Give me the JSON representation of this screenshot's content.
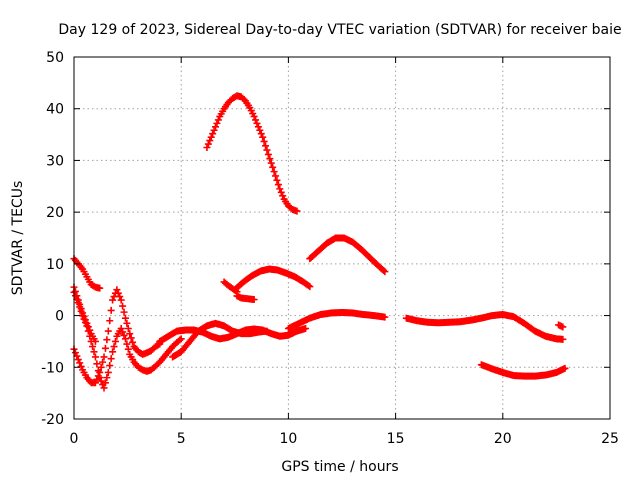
{
  "chart_data": {
    "type": "scatter",
    "title": "Day 129 of 2023, Sidereal Day-to-day VTEC variation (SDTVAR) for receiver baie",
    "xlabel": "GPS time / hours",
    "ylabel": "SDTVAR / TECUs",
    "xlim": [
      0,
      25
    ],
    "ylim": [
      -20,
      50
    ],
    "x_ticks": [
      0,
      5,
      10,
      15,
      20,
      25
    ],
    "y_ticks": [
      -20,
      -10,
      0,
      10,
      20,
      30,
      40,
      50
    ],
    "x_tick_labels": [
      "0",
      "5",
      "10",
      "15",
      "20",
      "25"
    ],
    "y_tick_labels": [
      "-20",
      "-10",
      "0",
      "10",
      "20",
      "30",
      "40",
      "50"
    ],
    "grid": true,
    "legend": "none",
    "marker": "+",
    "colors": {
      "series": "#ff0000",
      "grid": "#a0a0a0",
      "axis": "#000000"
    },
    "series": [
      {
        "name": "segment-1",
        "x": [
          0.0,
          0.2,
          0.4,
          0.6,
          0.8,
          1.0,
          1.2,
          1.4,
          1.6,
          1.8,
          2.0,
          2.2,
          2.4,
          2.6,
          2.8,
          3.0,
          3.2,
          3.4,
          3.6,
          3.8,
          4.0,
          4.2,
          4.4,
          4.6,
          4.8,
          5.0
        ],
        "values": [
          4.5,
          2.5,
          0.0,
          -2.0,
          -5.0,
          -8.0,
          -12.0,
          -14.0,
          -11.0,
          -7.0,
          -4.0,
          -2.5,
          -4.5,
          -7.5,
          -9.0,
          -10.0,
          -10.5,
          -10.8,
          -10.5,
          -9.8,
          -9.0,
          -8.0,
          -7.0,
          -6.0,
          -5.2,
          -4.5
        ]
      },
      {
        "name": "segment-2",
        "x": [
          0.0,
          0.2,
          0.4,
          0.6,
          0.8,
          1.0,
          1.2,
          1.4,
          1.6,
          1.8,
          2.0,
          2.2,
          2.4,
          2.6,
          2.8,
          3.0,
          3.2,
          3.4,
          3.6,
          3.8,
          4.0
        ],
        "values": [
          -6.5,
          -8.5,
          -10.5,
          -12.0,
          -13.0,
          -13.0,
          -11.0,
          -8.0,
          -3.0,
          3.0,
          5.0,
          3.0,
          -0.5,
          -3.5,
          -6.0,
          -7.0,
          -7.5,
          -7.2,
          -6.8,
          -6.0,
          -5.5
        ]
      },
      {
        "name": "segment-3",
        "x": [
          0.0,
          0.2,
          0.4,
          0.6,
          0.8,
          1.0,
          1.2
        ],
        "values": [
          11.0,
          10.0,
          9.0,
          7.5,
          6.0,
          5.5,
          5.3
        ]
      },
      {
        "name": "segment-4",
        "x": [
          0.0,
          0.2,
          0.4,
          0.6,
          0.8,
          1.0
        ],
        "values": [
          5.5,
          3.0,
          0.5,
          -1.5,
          -3.5,
          -5.0
        ]
      },
      {
        "name": "segment-5",
        "x": [
          4.0,
          4.4,
          4.8,
          5.2,
          5.6,
          6.0,
          6.4,
          6.8,
          7.2,
          7.6,
          8.0,
          8.4,
          8.8,
          9.2,
          9.6,
          10.0,
          10.4,
          10.8
        ],
        "values": [
          -5.0,
          -4.0,
          -3.0,
          -2.8,
          -2.8,
          -3.2,
          -4.0,
          -4.5,
          -4.2,
          -3.5,
          -2.8,
          -2.6,
          -2.8,
          -3.5,
          -4.0,
          -3.8,
          -3.0,
          -2.5
        ]
      },
      {
        "name": "segment-6",
        "x": [
          4.6,
          5.0,
          5.4,
          5.8,
          6.2,
          6.6,
          7.0,
          7.4,
          7.8,
          8.2,
          8.6,
          9.0
        ],
        "values": [
          -8.0,
          -7.0,
          -5.0,
          -3.0,
          -2.0,
          -1.5,
          -2.0,
          -3.0,
          -3.5,
          -3.5,
          -3.2,
          -3.0
        ]
      },
      {
        "name": "segment-7",
        "x": [
          10.0,
          10.5,
          11.0,
          11.5,
          12.0,
          12.5,
          13.0,
          13.5,
          14.0,
          14.5
        ],
        "values": [
          -2.5,
          -1.5,
          -0.5,
          0.2,
          0.5,
          0.6,
          0.5,
          0.2,
          0.0,
          -0.3
        ]
      },
      {
        "name": "segment-8",
        "x": [
          6.2,
          6.4,
          6.6,
          6.8,
          7.0,
          7.2,
          7.4,
          7.6,
          7.8,
          8.0,
          8.2,
          8.4,
          8.6,
          8.8,
          9.0,
          9.2,
          9.4,
          9.6,
          9.8,
          10.0,
          10.2,
          10.4
        ],
        "values": [
          32.5,
          34.5,
          36.5,
          38.5,
          40.0,
          41.2,
          42.0,
          42.5,
          42.3,
          41.5,
          40.2,
          38.5,
          36.5,
          34.5,
          32.0,
          29.5,
          27.0,
          24.5,
          22.5,
          21.2,
          20.5,
          20.2
        ]
      },
      {
        "name": "segment-9",
        "x": [
          7.5,
          7.9,
          8.3,
          8.7,
          9.1,
          9.5,
          9.9,
          10.3,
          10.7,
          11.0
        ],
        "values": [
          5.0,
          6.5,
          7.7,
          8.6,
          9.0,
          8.8,
          8.2,
          7.5,
          6.5,
          5.6
        ]
      },
      {
        "name": "segment-10",
        "x": [
          7.0,
          7.2,
          7.4,
          7.6
        ],
        "values": [
          6.5,
          5.8,
          5.2,
          4.6
        ]
      },
      {
        "name": "segment-11",
        "x": [
          7.6,
          7.8,
          8.0,
          8.2,
          8.4
        ],
        "values": [
          3.8,
          3.4,
          3.3,
          3.2,
          3.1
        ]
      },
      {
        "name": "segment-12",
        "x": [
          11.0,
          11.4,
          11.8,
          12.2,
          12.6,
          13.0,
          13.4,
          13.8,
          14.2,
          14.5
        ],
        "values": [
          11.0,
          12.5,
          14.0,
          15.0,
          15.0,
          14.2,
          12.8,
          11.2,
          9.6,
          8.5
        ]
      },
      {
        "name": "segment-13",
        "x": [
          15.5,
          16.0,
          16.5,
          17.0,
          17.5,
          18.0,
          18.5,
          19.0,
          19.5,
          20.0,
          20.5,
          21.0,
          21.5,
          22.0,
          22.5,
          22.8
        ],
        "values": [
          -0.5,
          -1.0,
          -1.3,
          -1.4,
          -1.3,
          -1.2,
          -0.9,
          -0.5,
          0.0,
          0.2,
          -0.2,
          -1.5,
          -3.0,
          -4.0,
          -4.5,
          -4.6
        ]
      },
      {
        "name": "segment-14",
        "x": [
          19.0,
          19.5,
          20.0,
          20.5,
          21.0,
          21.5,
          22.0,
          22.5,
          22.9
        ],
        "values": [
          -9.5,
          -10.3,
          -11.0,
          -11.6,
          -11.7,
          -11.7,
          -11.5,
          -11.0,
          -10.2
        ]
      },
      {
        "name": "segment-15",
        "x": [
          22.6,
          22.8
        ],
        "values": [
          -1.8,
          -2.2
        ]
      }
    ]
  }
}
